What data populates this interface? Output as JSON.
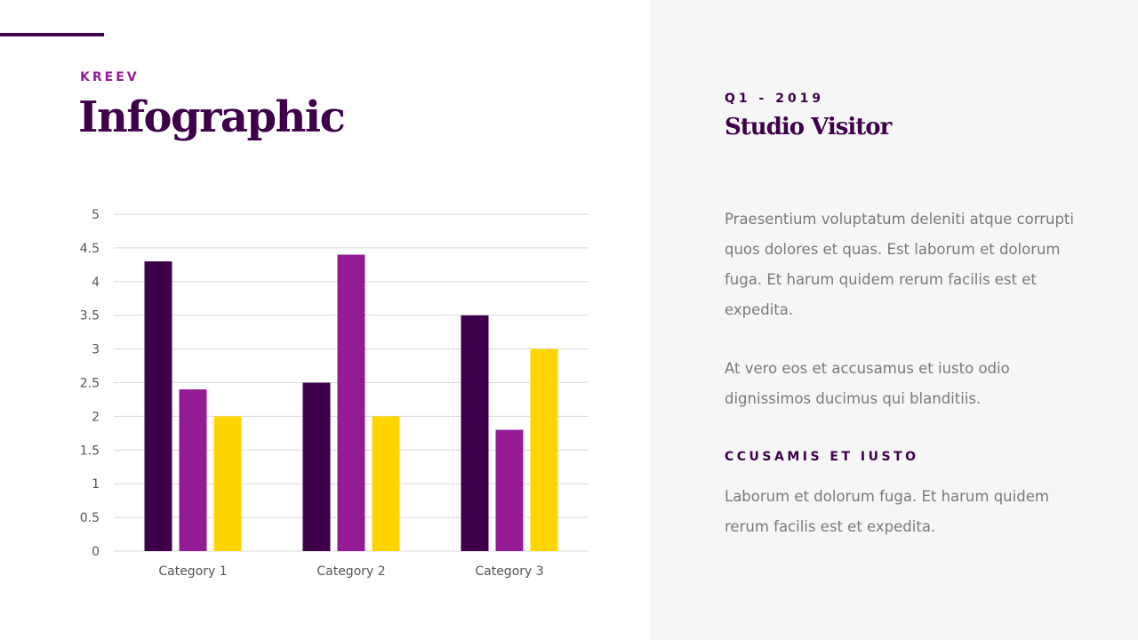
{
  "header": {
    "brand": "KREEV",
    "title": "Infographic"
  },
  "panel": {
    "period": "Q1 - 2019",
    "title": "Studio Visitor",
    "paragraph1": "Praesentium voluptatum deleniti atque corrupti quos dolores et quas. Est laborum et dolorum fuga. Et harum quidem rerum facilis est et expedita.",
    "paragraph2": "At vero eos et accusamus et iusto odio dignissimos ducimus qui blanditiis.",
    "subheading": "CCUSAMIS ET IUSTO",
    "paragraph3": "Laborum et dolorum fuga. Et harum quidem rerum facilis est et expedita."
  },
  "colors": {
    "primary": "#3d0049",
    "secondary": "#951b96",
    "tertiary": "#ffd500",
    "panel_bg": "#f6f6f6",
    "grid": "#d9d9d9"
  },
  "chart_data": {
    "type": "bar",
    "categories": [
      "Category 1",
      "Category 2",
      "Category 3"
    ],
    "series": [
      {
        "values": [
          4.3,
          2.5,
          3.5
        ],
        "color": "#3d0049"
      },
      {
        "values": [
          2.4,
          4.4,
          1.8
        ],
        "color": "#951b96"
      },
      {
        "values": [
          2.0,
          2.0,
          3.0
        ],
        "color": "#ffd500"
      }
    ],
    "yticks": [
      "0",
      "0.5",
      "1",
      "1.5",
      "2",
      "2.5",
      "3",
      "3.5",
      "4",
      "4.5",
      "5"
    ],
    "ylim": [
      0,
      5
    ],
    "grid": true,
    "legend": "none",
    "title": "",
    "xlabel": "",
    "ylabel": ""
  }
}
